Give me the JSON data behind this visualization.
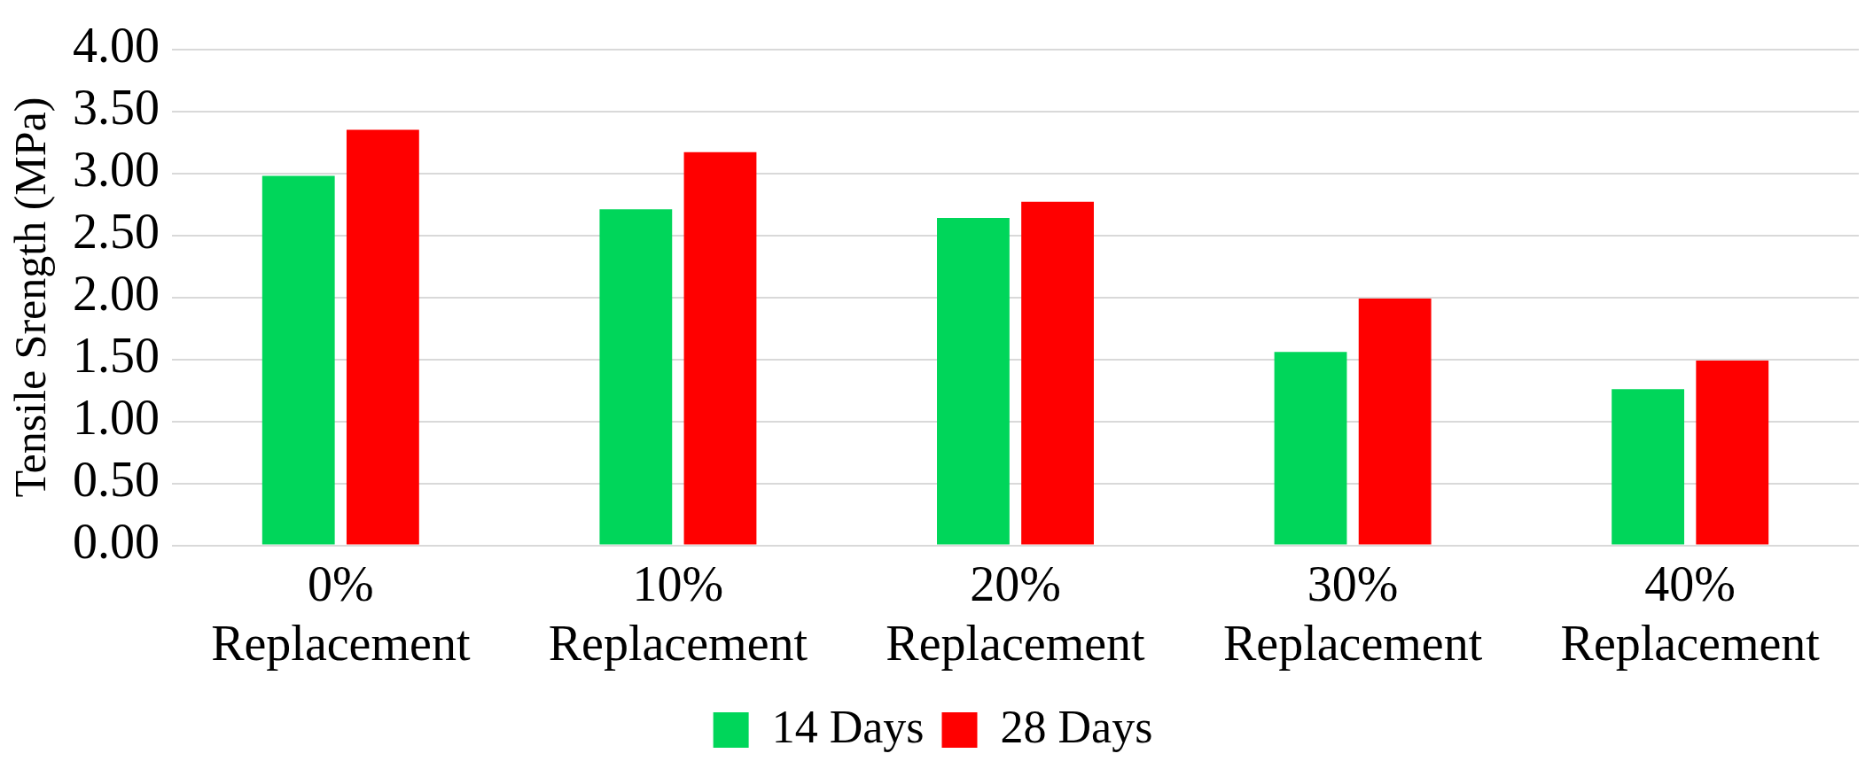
{
  "chart_data": {
    "type": "bar",
    "ylabel": "Tensile Srength (MPa)",
    "categories": [
      "0% Replacement",
      "10% Replacement",
      "20% Replacement",
      "30% Replacement",
      "40% Replacement"
    ],
    "series": [
      {
        "name": "14 Days",
        "color": "#00d65a",
        "values": [
          2.98,
          2.71,
          2.64,
          1.56,
          1.26
        ]
      },
      {
        "name": "28 Days",
        "color": "#ff0000",
        "values": [
          3.35,
          3.17,
          2.77,
          1.99,
          1.49
        ]
      }
    ],
    "ylim": [
      0,
      4
    ],
    "yticks": [
      {
        "value": 0,
        "label": "0.00"
      },
      {
        "value": 0.5,
        "label": "0.50"
      },
      {
        "value": 1,
        "label": "1.00"
      },
      {
        "value": 1.5,
        "label": "1.50"
      },
      {
        "value": 2,
        "label": "2.00"
      },
      {
        "value": 2.5,
        "label": "2.50"
      },
      {
        "value": 3,
        "label": "3.00"
      },
      {
        "value": 3.5,
        "label": "3.50"
      },
      {
        "value": 4,
        "label": "4.00"
      }
    ],
    "grid": "y",
    "legend": "bottom"
  }
}
